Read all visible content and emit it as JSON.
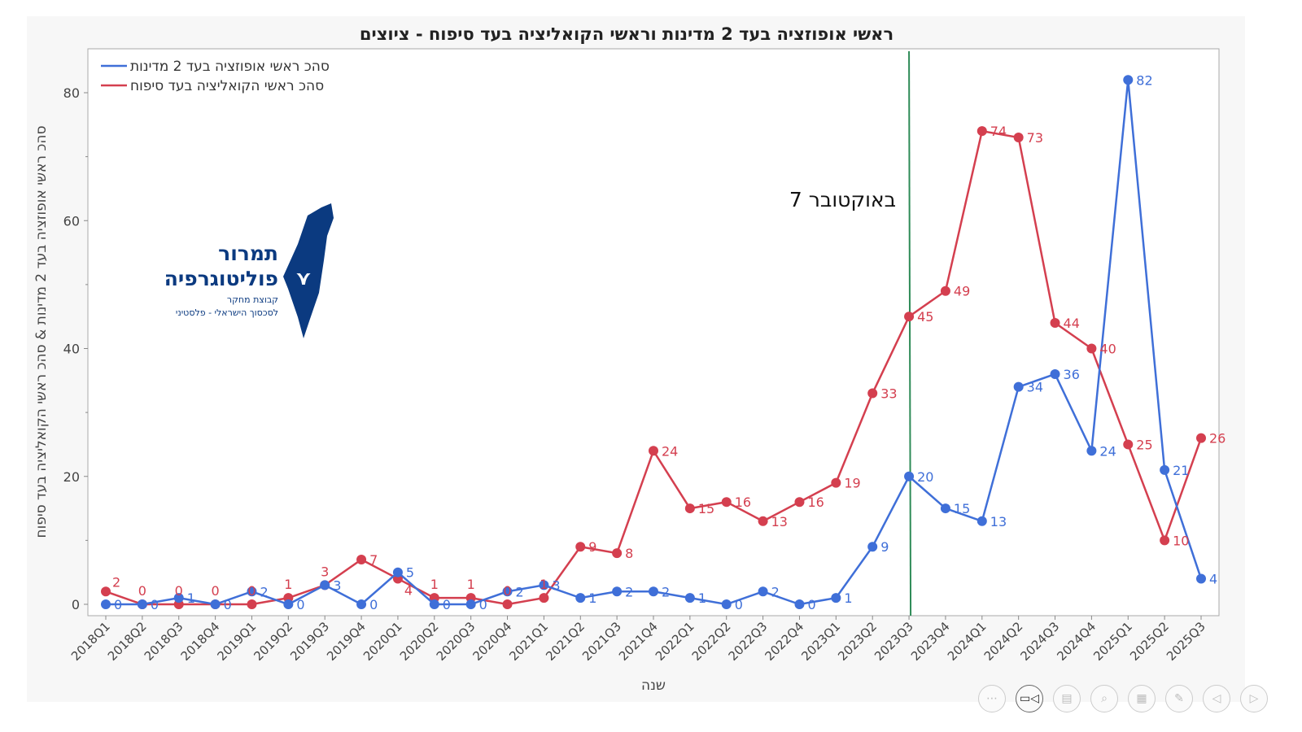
{
  "chart_data": {
    "type": "line",
    "title": "ראשי אופוזציה בעד 2 מדינות וראשי הקואליציה בעד סיפוח - ציוצים",
    "xlabel": "שנה",
    "ylabel": "סהכ ראשי אופוזציה בעד 2 מדינות & סהכ ראשי הקואליציה בעד סיפוח",
    "ylim": [
      -2,
      87
    ],
    "yticks": [
      0,
      20,
      40,
      60,
      80
    ],
    "legend_position": "top-left",
    "categories": [
      "2018Q1",
      "2018Q2",
      "2018Q3",
      "2018Q4",
      "2019Q1",
      "2019Q2",
      "2019Q3",
      "2019Q4",
      "2020Q1",
      "2020Q2",
      "2020Q3",
      "2020Q4",
      "2021Q1",
      "2021Q2",
      "2021Q3",
      "2021Q4",
      "2022Q1",
      "2022Q2",
      "2022Q3",
      "2022Q4",
      "2023Q1",
      "2023Q2",
      "2023Q3",
      "2023Q4",
      "2024Q1",
      "2024Q2",
      "2024Q3",
      "2024Q4",
      "2025Q1",
      "2025Q2",
      "2025Q3"
    ],
    "series": [
      {
        "name": "סהכ ראשי אופוזציה בעד 2 מדינות",
        "color": "#3f6fd8",
        "values": [
          0,
          0,
          1,
          0,
          2,
          0,
          3,
          0,
          5,
          0,
          0,
          2,
          3,
          1,
          2,
          2,
          1,
          0,
          2,
          0,
          1,
          9,
          20,
          15,
          13,
          34,
          36,
          24,
          82,
          21,
          4
        ]
      },
      {
        "name": "סהכ ראשי הקואליציה בעד סיפוח",
        "color": "#d43f4f",
        "values": [
          2,
          0,
          0,
          0,
          0,
          1,
          3,
          7,
          4,
          1,
          1,
          0,
          1,
          9,
          8,
          24,
          15,
          16,
          13,
          16,
          19,
          33,
          45,
          49,
          74,
          73,
          44,
          40,
          25,
          10,
          26
        ]
      }
    ],
    "annotations": [
      {
        "text": "7 באוקטובר",
        "x": "2023Q3",
        "color": "#2e8b57"
      }
    ]
  },
  "logo": {
    "line1": "תמרור",
    "line2": "פוליטוגרפיה",
    "line3": "קבוצת מחקר",
    "line4": "לסכסוך הישראלי - פלסטיני",
    "color": "#0b3a80"
  },
  "toolbar": [
    "more",
    "video",
    "captions",
    "zoom",
    "layout",
    "pen",
    "prev",
    "next"
  ]
}
